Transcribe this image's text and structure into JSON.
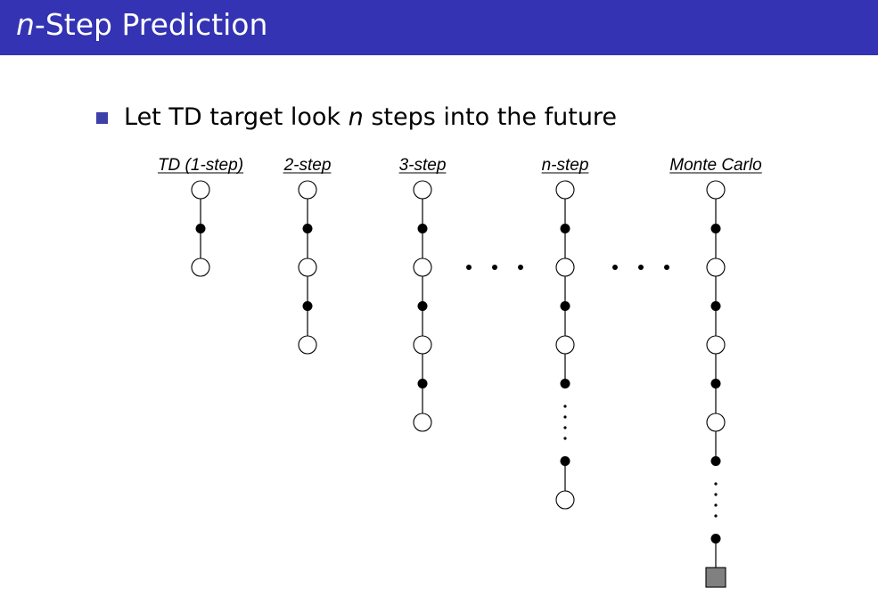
{
  "slide": {
    "title_prefix": "n",
    "title_rest": "-Step Prediction",
    "bullet_before": "Let TD target look ",
    "bullet_var": "n",
    "bullet_after": " steps into the future"
  },
  "colors": {
    "title_bar": "#3333b3",
    "bullet": "#3f3fa8",
    "terminal": "#808080"
  },
  "diagram": {
    "columns": [
      {
        "label": "TD (1-step)",
        "pattern": [
          "state",
          "action",
          "state"
        ]
      },
      {
        "label": "2-step",
        "pattern": [
          "state",
          "action",
          "state",
          "action",
          "state"
        ]
      },
      {
        "label": "3-step",
        "pattern": [
          "state",
          "action",
          "state",
          "action",
          "state",
          "action",
          "state"
        ]
      },
      {
        "label": "n-step",
        "pattern": [
          "state",
          "action",
          "state",
          "action",
          "state",
          "action",
          "ellipsis",
          "action",
          "state"
        ]
      },
      {
        "label": "Monte Carlo",
        "pattern": [
          "state",
          "action",
          "state",
          "action",
          "state",
          "action",
          "state",
          "action",
          "ellipsis",
          "action",
          "terminal"
        ]
      }
    ],
    "between_columns_ellipsis_after": [
      "3-step",
      "n-step"
    ]
  }
}
